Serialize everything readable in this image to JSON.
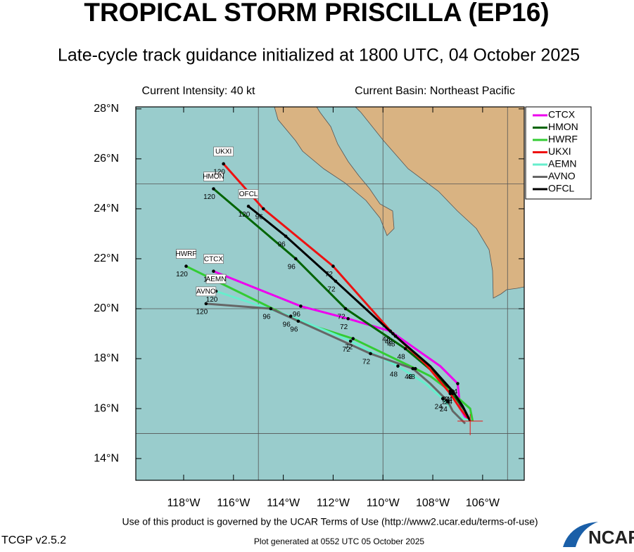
{
  "chart_data": {
    "type": "line",
    "title": "TROPICAL STORM PRISCILLA (EP16)",
    "subtitle": "Late-cycle track guidance initialized at 1800 UTC, 04 October 2025",
    "annotations": [
      "Current Intensity: 40 kt",
      "Current Basin: Northeast Pacific"
    ],
    "footer_note": "Use of this product is governed by the UCAR Terms of Use (http://www2.ucar.edu/terms-of-use)",
    "version": "TCGP v2.5.2",
    "generated": "Plot generated at 0552 UTC   05 October 2025",
    "logo": "NCAR",
    "xlim": [
      -119.92,
      -104.33
    ],
    "ylim": [
      13.13,
      28.08
    ],
    "xticks": [
      {
        "value": -118,
        "label": "118°W"
      },
      {
        "value": -116,
        "label": "116°W"
      },
      {
        "value": -114,
        "label": "114°W"
      },
      {
        "value": -112,
        "label": "112°W"
      },
      {
        "value": -110,
        "label": "110°W"
      },
      {
        "value": -108,
        "label": "108°W"
      },
      {
        "value": -106,
        "label": "106°W"
      }
    ],
    "yticks": [
      {
        "value": 14,
        "label": "14°N"
      },
      {
        "value": 16,
        "label": "16°N"
      },
      {
        "value": 18,
        "label": "18°N"
      },
      {
        "value": 20,
        "label": "20°N"
      },
      {
        "value": 22,
        "label": "22°N"
      },
      {
        "value": 24,
        "label": "24°N"
      },
      {
        "value": 26,
        "label": "26°N"
      },
      {
        "value": 28,
        "label": "28°N"
      }
    ],
    "xgrid": [
      -115,
      -110,
      -105
    ],
    "ygrid": [
      15,
      20,
      25
    ],
    "legend": "top-right",
    "series": [
      {
        "name": "CTCX",
        "color": "#ee00ee",
        "hours": [
          null,
          null,
          24,
          null,
          48,
          72,
          96,
          120
        ],
        "x": [
          -106.6,
          -106.9,
          -107.0,
          -107.7,
          -109.7,
          -111.4,
          -113.3,
          -116.8
        ],
        "y": [
          15.5,
          16.0,
          17.0,
          17.7,
          19.1,
          19.6,
          20.1,
          21.5
        ]
      },
      {
        "name": "HMON",
        "color": "#006400",
        "hours": [
          null,
          null,
          24,
          null,
          48,
          72,
          96,
          120
        ],
        "x": [
          -106.5,
          -106.7,
          -107.2,
          -107.9,
          -109.1,
          -111.5,
          -113.5,
          -116.8
        ],
        "y": [
          15.5,
          15.9,
          16.6,
          17.4,
          18.4,
          20.0,
          22.0,
          24.8
        ]
      },
      {
        "name": "HWRF",
        "color": "#33cc33",
        "hours": [
          null,
          null,
          24,
          null,
          48,
          72,
          96,
          120
        ],
        "x": [
          -106.4,
          -106.5,
          -107.3,
          -108.1,
          -108.7,
          -111.2,
          -113.4,
          -117.9
        ],
        "y": [
          15.5,
          16.0,
          16.7,
          17.3,
          17.6,
          18.8,
          19.5,
          21.7
        ]
      },
      {
        "name": "UKXI",
        "color": "#ee1111",
        "hours": [
          null,
          null,
          24,
          null,
          48,
          72,
          96,
          120
        ],
        "x": [
          -106.5,
          -106.9,
          -107.3,
          -108.3,
          -109.6,
          -112.0,
          -114.8,
          -116.4
        ],
        "y": [
          15.5,
          16.0,
          16.6,
          17.8,
          19.0,
          21.7,
          24.0,
          25.8
        ]
      },
      {
        "name": "AEMN",
        "color": "#66eecc",
        "hours": [
          null,
          null,
          24,
          null,
          48,
          72,
          96,
          120
        ],
        "x": [
          -106.5,
          -107.0,
          -107.6,
          -108.3,
          -109.4,
          -111.3,
          -113.7,
          -116.7
        ],
        "y": [
          15.5,
          15.7,
          16.4,
          17.0,
          17.7,
          18.7,
          19.7,
          20.7
        ]
      },
      {
        "name": "AVNO",
        "color": "#666666",
        "hours": [
          null,
          null,
          24,
          null,
          48,
          72,
          96,
          120
        ],
        "x": [
          -106.7,
          -107.2,
          -107.4,
          -108.1,
          -108.8,
          -110.5,
          -114.5,
          -117.1
        ],
        "y": [
          15.4,
          15.9,
          16.3,
          17.0,
          17.6,
          18.2,
          20.0,
          20.2
        ]
      },
      {
        "name": "OFCL",
        "color": "#000000",
        "hours": [
          null,
          null,
          24,
          null,
          48,
          72,
          96,
          120
        ],
        "x": [
          -106.5,
          -106.8,
          -107.2,
          -108.1,
          -109.5,
          -111.9,
          -113.9,
          -115.4
        ],
        "y": [
          15.5,
          16.1,
          16.7,
          17.7,
          18.9,
          21.1,
          22.9,
          24.1
        ]
      }
    ]
  }
}
